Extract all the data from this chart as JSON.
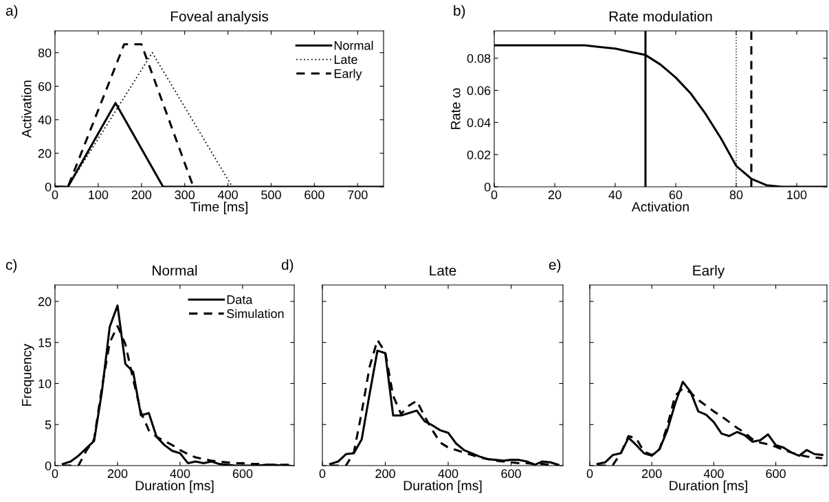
{
  "chart_data": [
    {
      "type": "line",
      "title": "Foveal analysis",
      "xlabel": "Time [ms]",
      "ylabel": "Activation",
      "annotations": [
        "a)"
      ],
      "xlim": [
        0,
        760
      ],
      "xticks": [
        0,
        100,
        200,
        300,
        400,
        500,
        600,
        700
      ],
      "ylim": [
        0,
        93
      ],
      "yticks": [
        0,
        20,
        40,
        60,
        80
      ],
      "grid": false,
      "legend": "top right",
      "marker": "none",
      "series": [
        {
          "name": "Normal",
          "color": "#000000",
          "line_style": "solid",
          "x": [
            0,
            30,
            140,
            250,
            760
          ],
          "values": [
            0,
            0,
            50,
            0,
            0
          ]
        },
        {
          "name": "Late",
          "color": "#000000",
          "line_style": "dotted",
          "x": [
            0,
            30,
            225,
            410,
            760
          ],
          "values": [
            0,
            0,
            80,
            0,
            0
          ]
        },
        {
          "name": "Early",
          "color": "#000000",
          "line_style": "dashed",
          "x": [
            0,
            30,
            160,
            200,
            320
          ],
          "values": [
            0,
            0,
            85,
            85,
            0
          ]
        }
      ]
    },
    {
      "type": "line",
      "title": "Rate modulation",
      "xlabel": "Activation",
      "ylabel": "Rate ω",
      "annotations": [
        "b)"
      ],
      "xlim": [
        0,
        110
      ],
      "xticks": [
        0,
        20,
        40,
        60,
        80,
        100
      ],
      "ylim": [
        0,
        0.097
      ],
      "yticks": [
        {
          "value": 0,
          "label": "0"
        },
        {
          "value": 0.02,
          "label": "0.02"
        },
        {
          "value": 0.04,
          "label": "0.04"
        },
        {
          "value": 0.06,
          "label": "0.06"
        },
        {
          "value": 0.08,
          "label": "0.08"
        }
      ],
      "grid": false,
      "marker": "none",
      "series": [
        {
          "color": "#000000",
          "line_style": "solid",
          "x": [
            0,
            30,
            35,
            40,
            45,
            50,
            55,
            60,
            65,
            70,
            75,
            80,
            85,
            90,
            95,
            100,
            110
          ],
          "values": [
            0.088,
            0.088,
            0.087,
            0.086,
            0.084,
            0.082,
            0.076,
            0.068,
            0.058,
            0.045,
            0.03,
            0.013,
            0.005,
            0.001,
            0,
            0,
            0
          ]
        }
      ],
      "ref_lines": [
        {
          "axis": "x",
          "value": 50,
          "color": "#000000",
          "line_style": "solid"
        },
        {
          "axis": "x",
          "value": 80,
          "color": "#000000",
          "line_style": "dotted"
        },
        {
          "axis": "x",
          "value": 85,
          "color": "#000000",
          "line_style": "dashed"
        }
      ]
    },
    {
      "type": "line",
      "title": "Normal",
      "xlabel": "Duration [ms]",
      "ylabel": "Frequency",
      "annotations": [
        "c)"
      ],
      "xlim": [
        0,
        765
      ],
      "xticks": [
        0,
        200,
        400,
        600
      ],
      "ylim": [
        0,
        22
      ],
      "yticks": [
        0,
        5,
        10,
        15,
        20
      ],
      "grid": false,
      "legend": "top right",
      "marker": "none",
      "x": [
        25,
        50,
        75,
        100,
        125,
        150,
        175,
        200,
        225,
        250,
        275,
        300,
        325,
        350,
        375,
        400,
        425,
        450,
        475,
        500,
        525,
        550,
        575,
        600,
        625,
        650,
        675,
        700,
        725,
        750
      ],
      "series": [
        {
          "name": "Data",
          "color": "#000000",
          "line_style": "solid",
          "values": [
            0.2,
            0.5,
            1.2,
            2.1,
            3.0,
            9.0,
            16.9,
            19.5,
            12.4,
            11.4,
            6.1,
            6.4,
            3.5,
            2.5,
            1.8,
            1.5,
            0.3,
            0.5,
            0.3,
            0.5,
            0.2,
            0.1,
            0,
            0,
            0,
            0,
            0.1,
            0.1,
            0,
            0
          ]
        },
        {
          "name": "Simulation",
          "color": "#000000",
          "line_style": "dashed",
          "values": [
            0,
            0,
            0,
            1.8,
            3.2,
            9.5,
            15.0,
            17.0,
            14.8,
            10.5,
            6.5,
            4.3,
            3.5,
            3.0,
            2.5,
            1.9,
            1.4,
            1.0,
            0.8,
            0.6,
            0.5,
            0.4,
            0.3,
            0.3,
            0.2,
            0.2,
            0.1,
            0.1,
            0.1,
            0.1
          ]
        }
      ]
    },
    {
      "type": "line",
      "title": "Late",
      "xlabel": "Duration [ms]",
      "annotations": [
        "d)"
      ],
      "xlim": [
        0,
        765
      ],
      "xticks": [
        0,
        200,
        400,
        600
      ],
      "ylim": [
        0,
        22
      ],
      "yticks": [
        0,
        5,
        10,
        15,
        20
      ],
      "tick_labels": "x",
      "grid": false,
      "marker": "none",
      "x": [
        25,
        50,
        75,
        100,
        125,
        150,
        175,
        200,
        225,
        250,
        275,
        300,
        325,
        350,
        375,
        400,
        425,
        450,
        475,
        500,
        525,
        550,
        575,
        600,
        625,
        650,
        675,
        700,
        725,
        750
      ],
      "series": [
        {
          "color": "#000000",
          "line_style": "solid",
          "values": [
            0.2,
            0.5,
            1.4,
            1.5,
            3.2,
            8.7,
            14.0,
            13.7,
            6.1,
            6.1,
            6.4,
            6.7,
            5.4,
            4.9,
            4.3,
            4.0,
            2.7,
            1.9,
            1.5,
            1.1,
            0.8,
            0.7,
            0.6,
            0.7,
            0.7,
            0.5,
            0.1,
            0.5,
            0.4,
            0.1
          ]
        },
        {
          "color": "#000000",
          "line_style": "dashed",
          "values": [
            0,
            0,
            0,
            1.6,
            6.5,
            12.0,
            15.3,
            13.8,
            8.5,
            6.3,
            7.3,
            7.9,
            6.0,
            4.3,
            2.8,
            2.2,
            1.9,
            1.6,
            1.3,
            1.0,
            0.8,
            0.6,
            0.5,
            0.4,
            0.3,
            0.3,
            0.2,
            0.2,
            0.1,
            0.1
          ]
        }
      ]
    },
    {
      "type": "line",
      "title": "Early",
      "xlabel": "Duration [ms]",
      "annotations": [
        "e)"
      ],
      "xlim": [
        0,
        765
      ],
      "xticks": [
        0,
        200,
        400,
        600
      ],
      "ylim": [
        0,
        22
      ],
      "yticks": [
        0,
        5,
        10,
        15,
        20
      ],
      "tick_labels": "x",
      "grid": false,
      "marker": "none",
      "x": [
        25,
        50,
        75,
        100,
        125,
        150,
        175,
        200,
        225,
        250,
        275,
        300,
        325,
        350,
        375,
        400,
        425,
        450,
        475,
        500,
        525,
        550,
        575,
        600,
        625,
        650,
        675,
        700,
        725,
        750
      ],
      "series": [
        {
          "color": "#000000",
          "line_style": "solid",
          "values": [
            0.2,
            0.4,
            1.3,
            1.5,
            3.4,
            2.5,
            1.5,
            1.2,
            2.0,
            4.3,
            7.5,
            10.2,
            9.0,
            6.6,
            6.2,
            5.3,
            3.9,
            3.6,
            4.1,
            3.7,
            2.9,
            3.1,
            3.8,
            2.5,
            2.2,
            1.6,
            1.2,
            1.9,
            1.4,
            1.3
          ]
        },
        {
          "color": "#000000",
          "line_style": "dashed",
          "values": [
            0,
            0,
            0.1,
            1.5,
            3.6,
            3.3,
            1.7,
            1.3,
            2.0,
            4.8,
            8.5,
            9.4,
            8.9,
            8.0,
            7.3,
            6.6,
            6.0,
            5.3,
            4.6,
            4.0,
            3.2,
            2.8,
            2.6,
            2.3,
            1.9,
            1.6,
            1.3,
            1.1,
            1.0,
            0.9
          ]
        }
      ]
    }
  ]
}
